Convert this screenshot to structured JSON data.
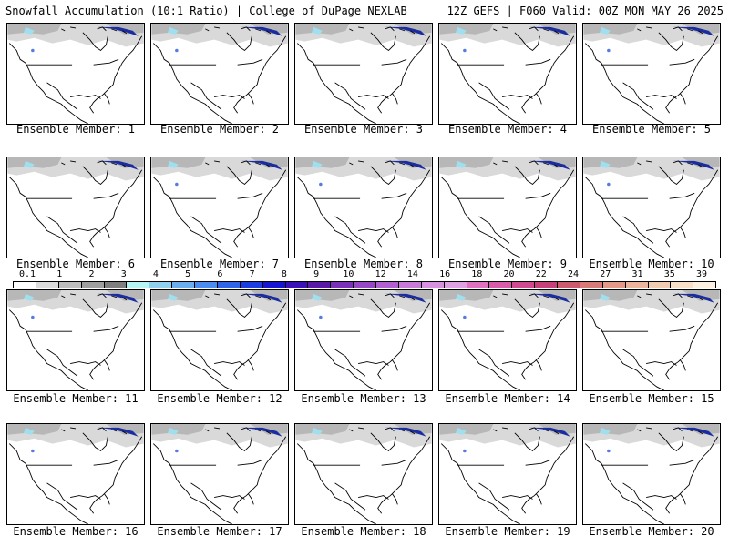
{
  "header": {
    "title_left": "Snowfall Accumulation (10:1 Ratio) | College of DuPage NEXLAB",
    "title_right": "12Z GEFS | F060 Valid: 00Z MON MAY 26 2025"
  },
  "members": [
    {
      "label": "Ensemble Member: 1"
    },
    {
      "label": "Ensemble Member: 2"
    },
    {
      "label": "Ensemble Member: 3"
    },
    {
      "label": "Ensemble Member: 4"
    },
    {
      "label": "Ensemble Member: 5"
    },
    {
      "label": "Ensemble Member: 6"
    },
    {
      "label": "Ensemble Member: 7"
    },
    {
      "label": "Ensemble Member: 8"
    },
    {
      "label": "Ensemble Member: 9"
    },
    {
      "label": "Ensemble Member: 10"
    },
    {
      "label": "Ensemble Member: 11"
    },
    {
      "label": "Ensemble Member: 12"
    },
    {
      "label": "Ensemble Member: 13"
    },
    {
      "label": "Ensemble Member: 14"
    },
    {
      "label": "Ensemble Member: 15"
    },
    {
      "label": "Ensemble Member: 16"
    },
    {
      "label": "Ensemble Member: 17"
    },
    {
      "label": "Ensemble Member: 18"
    },
    {
      "label": "Ensemble Member: 19"
    },
    {
      "label": "Ensemble Member: 20"
    }
  ],
  "colorbar": {
    "labels": [
      "0.1",
      "1",
      "2",
      "3",
      "4",
      "5",
      "6",
      "7",
      "8",
      "9",
      "10",
      "12",
      "14",
      "16",
      "18",
      "20",
      "22",
      "24",
      "27",
      "31",
      "35",
      "39"
    ],
    "colors": [
      "#ffffff",
      "#dcdcdc",
      "#bdbdbd",
      "#9e9e9e",
      "#7f7f7f",
      "#b7f4f4",
      "#8fd0ee",
      "#6aaef0",
      "#4a8cf0",
      "#2f64e8",
      "#1a3ce0",
      "#1414d2",
      "#3a10b8",
      "#5a18a8",
      "#7a30b8",
      "#9648c4",
      "#b060d0",
      "#c87ad8",
      "#d890e0",
      "#e0a0e4",
      "#e070c0",
      "#d85aa8",
      "#d04890",
      "#c8407a",
      "#cc5a6e",
      "#d87a78",
      "#e49888",
      "#ecb49a",
      "#f2ccb0",
      "#f8e0c8",
      "#fcf0e0"
    ]
  },
  "map": {
    "land_color": "#ffffff",
    "light_snow_color": "#cfcfcf",
    "medium_snow_color": "#a8a8a8",
    "cyan_color": "#9fe0f0",
    "blue_color": "#5a7ae0",
    "heavy_color": "#1a2ca0"
  }
}
